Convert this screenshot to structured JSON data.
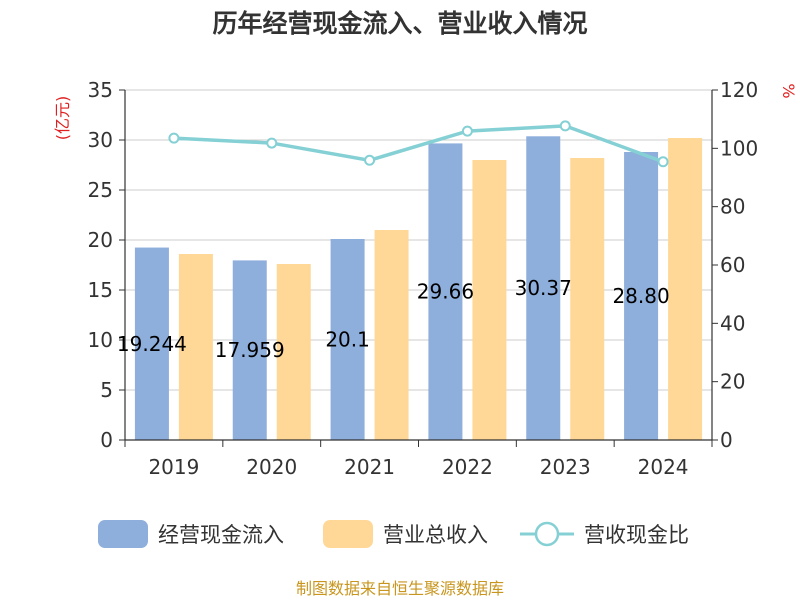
{
  "chart_data": {
    "type": "bar",
    "title": "历年经营现金流入、营业收入情况",
    "categories": [
      "2019",
      "2020",
      "2021",
      "2022",
      "2023",
      "2024"
    ],
    "y_left": {
      "label": "(亿元)",
      "ylim": [
        0,
        35
      ],
      "ticks": [
        0,
        5,
        10,
        15,
        20,
        25,
        30,
        35
      ]
    },
    "y_right": {
      "label": "%",
      "ylim": [
        0,
        120
      ],
      "ticks": [
        0,
        20,
        40,
        60,
        80,
        100,
        120
      ]
    },
    "series": [
      {
        "name": "经营现金流入",
        "type": "bar",
        "axis": "left",
        "color": "#8eaedb",
        "values": [
          19.244,
          17.959,
          20.1,
          29.66,
          30.37,
          28.8
        ],
        "labels": [
          "19.244",
          "17.959",
          "20.1",
          "29.66",
          "30.37",
          "28.80"
        ]
      },
      {
        "name": "营业总收入",
        "type": "bar",
        "axis": "left",
        "color": "#ffd898",
        "values": [
          18.6,
          17.6,
          21.0,
          28.0,
          28.2,
          30.2
        ]
      },
      {
        "name": "营收现金比",
        "type": "line",
        "axis": "right",
        "color": "#84d0d4",
        "values": [
          103.5,
          101.8,
          95.9,
          105.9,
          107.7,
          95.4
        ]
      }
    ],
    "grid": true,
    "legend_position": "bottom"
  },
  "footer": {
    "source": "制图数据来自恒生聚源数据库"
  }
}
